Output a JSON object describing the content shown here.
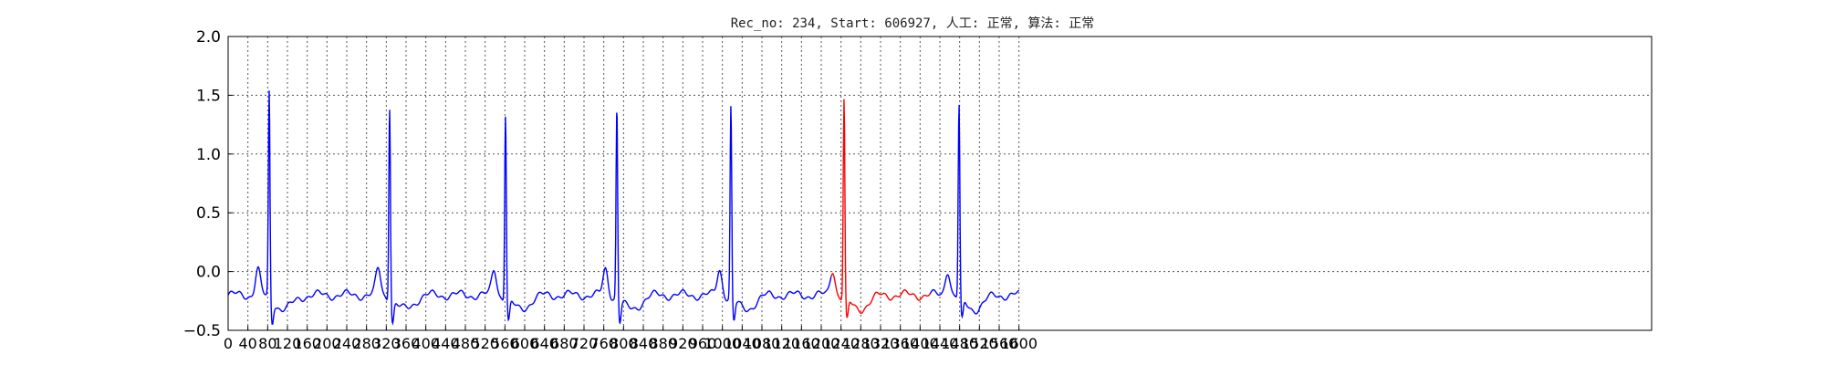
{
  "chart_data": {
    "type": "line",
    "title": "Rec_no: 234, Start: 606927, 人工: 正常, 算法: 正常",
    "xlabel": "",
    "ylabel": "",
    "xlim": [
      0,
      2880
    ],
    "ylim": [
      -0.5,
      2.0
    ],
    "grid": true,
    "yticks": [
      2.0,
      1.5,
      1.0,
      0.5,
      0.0,
      -0.5
    ],
    "ytick_labels": [
      "2.0",
      "1.5",
      "1.0",
      "0.5",
      "0.0",
      "−0.5"
    ],
    "xtick_step": 40,
    "xtick_max": 1600,
    "data_x_end": 1600,
    "beat_centers": [
      80,
      320,
      560,
      820,
      1080,
      1320,
      1560
    ],
    "series": [
      {
        "color": "#0000ff",
        "x_range": [
          0,
          1220
        ]
      },
      {
        "color": "#ff0000",
        "x_range": [
          1220,
          1420
        ]
      },
      {
        "color": "#0000ff",
        "x_range": [
          1420,
          1600
        ]
      }
    ]
  }
}
